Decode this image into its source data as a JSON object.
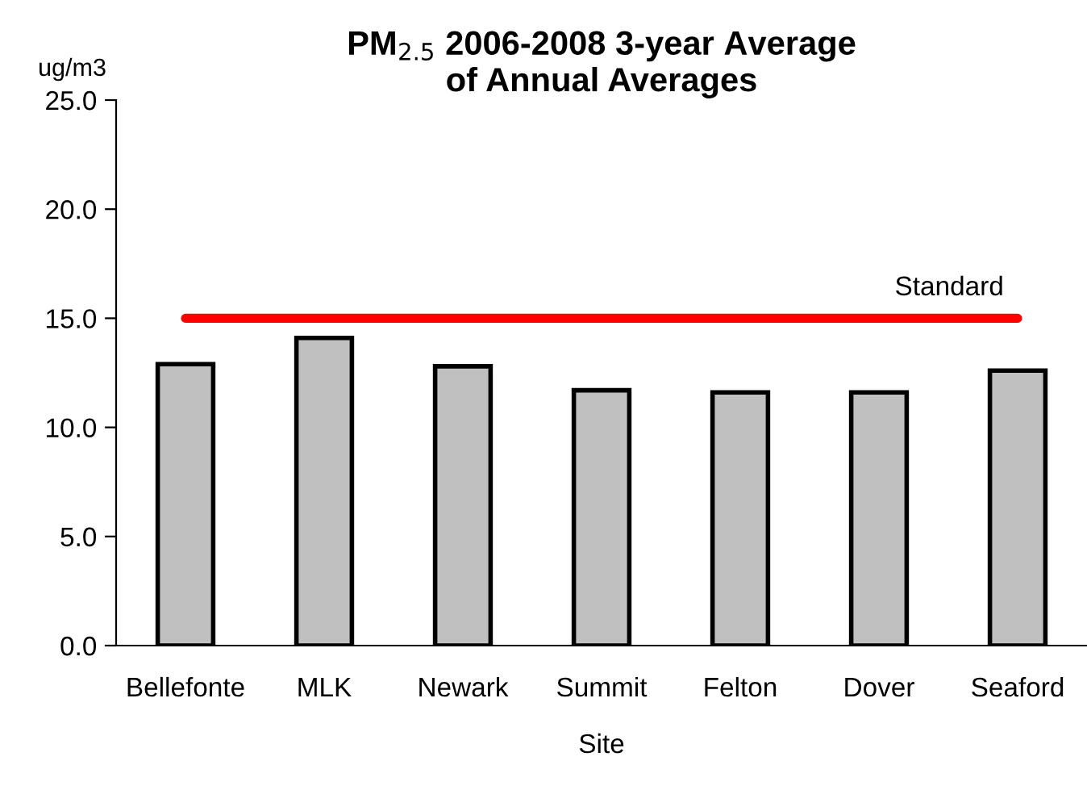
{
  "chart_data": {
    "type": "bar",
    "title": "PM$_{2.5}$ 2006-2008 3-year Average\nof Annual Averages",
    "xlabel": "Site",
    "ylabel": "ug/m3",
    "categories": [
      "Bellefonte",
      "MLK",
      "Newark",
      "Summit",
      "Felton",
      "Dover",
      "Seaford"
    ],
    "values": [
      12.9,
      14.1,
      12.8,
      11.7,
      11.6,
      11.6,
      12.6
    ],
    "color": "#c0c0c0",
    "ylim": [
      0,
      25
    ],
    "yticks": [
      {
        "value": 0,
        "label": "0.0"
      },
      {
        "value": 5,
        "label": "5.0"
      },
      {
        "value": 10,
        "label": "10.0"
      },
      {
        "value": 15,
        "label": "15.0"
      },
      {
        "value": 20,
        "label": "20.0"
      },
      {
        "value": 25,
        "label": "25.0"
      }
    ],
    "ref_lines": [
      {
        "axis": "y",
        "value": 15,
        "label": "Standard",
        "color": "#ff0000"
      }
    ],
    "grid": false,
    "legend": false
  }
}
